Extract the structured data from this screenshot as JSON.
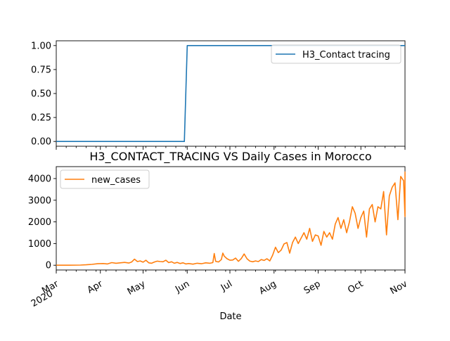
{
  "chart_data": [
    {
      "type": "line",
      "title": "",
      "xlabel": "",
      "ylabel": "",
      "ylim": [
        -0.05,
        1.05
      ],
      "yticks": [
        "0.00",
        "0.25",
        "0.50",
        "0.75",
        "1.00"
      ],
      "xlim": [
        "2020-03-01",
        "2020-11-01"
      ],
      "legend_position": "top-right",
      "series": [
        {
          "name": "H3_Contact tracing",
          "color": "#1f77b4",
          "points": [
            [
              "2020-03-01",
              0
            ],
            [
              "2020-05-30",
              0
            ],
            [
              "2020-06-01",
              1
            ],
            [
              "2020-11-01",
              1
            ]
          ]
        }
      ]
    },
    {
      "type": "line",
      "title": "H3_CONTACT_TRACING VS Daily Cases in Morocco",
      "xlabel": "Date",
      "ylabel": "",
      "ylim": [
        -220,
        4550
      ],
      "yticks": [
        "0",
        "1000",
        "2000",
        "3000",
        "4000"
      ],
      "xlim": [
        "2020-03-01",
        "2020-11-01"
      ],
      "xtick_labels": [
        "Mar\n2020",
        "Apr",
        "May",
        "Jun",
        "Jul",
        "Aug",
        "Sep",
        "Oct",
        "Nov"
      ],
      "legend_position": "top-left",
      "series": [
        {
          "name": "new_cases",
          "color": "#ff7f0e",
          "points": [
            [
              "2020-03-01",
              0
            ],
            [
              "2020-03-10",
              1
            ],
            [
              "2020-03-18",
              8
            ],
            [
              "2020-03-22",
              20
            ],
            [
              "2020-03-26",
              40
            ],
            [
              "2020-03-30",
              70
            ],
            [
              "2020-04-03",
              80
            ],
            [
              "2020-04-06",
              60
            ],
            [
              "2020-04-09",
              120
            ],
            [
              "2020-04-12",
              90
            ],
            [
              "2020-04-15",
              110
            ],
            [
              "2020-04-18",
              130
            ],
            [
              "2020-04-21",
              100
            ],
            [
              "2020-04-23",
              150
            ],
            [
              "2020-04-25",
              280
            ],
            [
              "2020-04-27",
              170
            ],
            [
              "2020-04-29",
              200
            ],
            [
              "2020-05-01",
              140
            ],
            [
              "2020-05-03",
              230
            ],
            [
              "2020-05-05",
              110
            ],
            [
              "2020-05-07",
              90
            ],
            [
              "2020-05-09",
              150
            ],
            [
              "2020-05-11",
              190
            ],
            [
              "2020-05-13",
              170
            ],
            [
              "2020-05-15",
              160
            ],
            [
              "2020-05-17",
              230
            ],
            [
              "2020-05-19",
              120
            ],
            [
              "2020-05-21",
              160
            ],
            [
              "2020-05-23",
              90
            ],
            [
              "2020-05-25",
              130
            ],
            [
              "2020-05-27",
              80
            ],
            [
              "2020-05-29",
              110
            ],
            [
              "2020-05-31",
              60
            ],
            [
              "2020-06-02",
              80
            ],
            [
              "2020-06-05",
              50
            ],
            [
              "2020-06-08",
              90
            ],
            [
              "2020-06-11",
              70
            ],
            [
              "2020-06-14",
              110
            ],
            [
              "2020-06-17",
              90
            ],
            [
              "2020-06-19",
              120
            ],
            [
              "2020-06-20",
              540
            ],
            [
              "2020-06-21",
              180
            ],
            [
              "2020-06-23",
              150
            ],
            [
              "2020-06-25",
              260
            ],
            [
              "2020-06-26",
              560
            ],
            [
              "2020-06-27",
              420
            ],
            [
              "2020-06-29",
              300
            ],
            [
              "2020-07-01",
              230
            ],
            [
              "2020-07-03",
              240
            ],
            [
              "2020-07-05",
              330
            ],
            [
              "2020-07-07",
              180
            ],
            [
              "2020-07-09",
              310
            ],
            [
              "2020-07-11",
              520
            ],
            [
              "2020-07-13",
              300
            ],
            [
              "2020-07-15",
              190
            ],
            [
              "2020-07-17",
              160
            ],
            [
              "2020-07-19",
              200
            ],
            [
              "2020-07-21",
              170
            ],
            [
              "2020-07-23",
              260
            ],
            [
              "2020-07-25",
              220
            ],
            [
              "2020-07-27",
              300
            ],
            [
              "2020-07-29",
              200
            ],
            [
              "2020-07-31",
              460
            ],
            [
              "2020-08-02",
              830
            ],
            [
              "2020-08-04",
              580
            ],
            [
              "2020-08-06",
              700
            ],
            [
              "2020-08-08",
              980
            ],
            [
              "2020-08-10",
              1050
            ],
            [
              "2020-08-12",
              560
            ],
            [
              "2020-08-14",
              1050
            ],
            [
              "2020-08-16",
              1300
            ],
            [
              "2020-08-18",
              1000
            ],
            [
              "2020-08-20",
              1250
            ],
            [
              "2020-08-22",
              1500
            ],
            [
              "2020-08-24",
              1200
            ],
            [
              "2020-08-26",
              1700
            ],
            [
              "2020-08-28",
              1100
            ],
            [
              "2020-08-30",
              1400
            ],
            [
              "2020-09-01",
              1350
            ],
            [
              "2020-09-03",
              920
            ],
            [
              "2020-09-05",
              1560
            ],
            [
              "2020-09-07",
              1300
            ],
            [
              "2020-09-09",
              1500
            ],
            [
              "2020-09-11",
              1200
            ],
            [
              "2020-09-13",
              1900
            ],
            [
              "2020-09-15",
              2200
            ],
            [
              "2020-09-17",
              1700
            ],
            [
              "2020-09-19",
              2100
            ],
            [
              "2020-09-21",
              1500
            ],
            [
              "2020-09-23",
              2000
            ],
            [
              "2020-09-25",
              2700
            ],
            [
              "2020-09-27",
              2400
            ],
            [
              "2020-09-29",
              1700
            ],
            [
              "2020-10-01",
              2200
            ],
            [
              "2020-10-03",
              2500
            ],
            [
              "2020-10-05",
              1300
            ],
            [
              "2020-10-07",
              2600
            ],
            [
              "2020-10-09",
              2800
            ],
            [
              "2020-10-11",
              2000
            ],
            [
              "2020-10-13",
              2700
            ],
            [
              "2020-10-15",
              2600
            ],
            [
              "2020-10-17",
              3400
            ],
            [
              "2020-10-19",
              1400
            ],
            [
              "2020-10-21",
              3200
            ],
            [
              "2020-10-23",
              3600
            ],
            [
              "2020-10-25",
              3800
            ],
            [
              "2020-10-27",
              2100
            ],
            [
              "2020-10-29",
              4100
            ],
            [
              "2020-10-31",
              3900
            ],
            [
              "2020-11-02",
              2250
            ],
            [
              "2020-11-04",
              4000
            ],
            [
              "2020-11-06",
              4300
            ],
            [
              "2020-11-07",
              3300
            ],
            [
              "2020-11-08",
              3800
            ],
            [
              "2020-11-09",
              3500
            ]
          ]
        }
      ]
    }
  ]
}
